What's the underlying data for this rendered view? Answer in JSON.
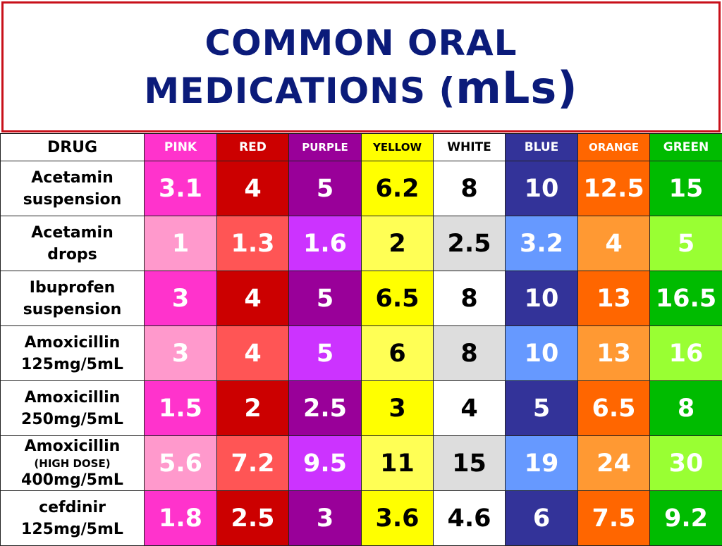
{
  "title": {
    "line1": "COMMON ORAL",
    "line2_main": "MEDICATIONS (",
    "line2_unit": "mLs)"
  },
  "table": {
    "drug_header": "DRUG",
    "columns": [
      {
        "label": "PINK",
        "header_bg": "#ff33cc",
        "header_fg": "#ffffff"
      },
      {
        "label": "RED",
        "header_bg": "#cc0000",
        "header_fg": "#ffffff"
      },
      {
        "label": "PURPLE",
        "header_bg": "#990099",
        "header_fg": "#ffffff"
      },
      {
        "label": "YELLOW",
        "header_bg": "#ffff00",
        "header_fg": "#000000"
      },
      {
        "label": "WHITE",
        "header_bg": "#ffffff",
        "header_fg": "#000000"
      },
      {
        "label": "BLUE",
        "header_bg": "#333399",
        "header_fg": "#ffffff"
      },
      {
        "label": "ORANGE",
        "header_bg": "#ff6600",
        "header_fg": "#ffffff"
      },
      {
        "label": "GREEN",
        "header_bg": "#00bb00",
        "header_fg": "#ffffff"
      }
    ],
    "row_styles": {
      "dark": {
        "bg": [
          "#ff33cc",
          "#cc0000",
          "#990099",
          "#ffff00",
          "#ffffff",
          "#333399",
          "#ff6600",
          "#00bb00"
        ],
        "fg": [
          "#ffffff",
          "#ffffff",
          "#ffffff",
          "#000000",
          "#000000",
          "#ffffff",
          "#ffffff",
          "#ffffff"
        ]
      },
      "light": {
        "bg": [
          "#ff99cc",
          "#ff5555",
          "#cc33ff",
          "#ffff55",
          "#dddddd",
          "#6699ff",
          "#ff9933",
          "#99ff33"
        ],
        "fg": [
          "#ffffff",
          "#ffffff",
          "#ffffff",
          "#000000",
          "#000000",
          "#ffffff",
          "#ffffff",
          "#ffffff"
        ]
      }
    },
    "rows": [
      {
        "drug": [
          "Acetamin",
          "suspension"
        ],
        "style": "dark",
        "values": [
          "3.1",
          "4",
          "5",
          "6.2",
          "8",
          "10",
          "12.5",
          "15"
        ]
      },
      {
        "drug": [
          "Acetamin",
          "drops"
        ],
        "style": "light",
        "values": [
          "1",
          "1.3",
          "1.6",
          "2",
          "2.5",
          "3.2",
          "4",
          "5"
        ]
      },
      {
        "drug": [
          "Ibuprofen",
          "suspension"
        ],
        "style": "dark",
        "values": [
          "3",
          "4",
          "5",
          "6.5",
          "8",
          "10",
          "13",
          "16.5"
        ]
      },
      {
        "drug": [
          "Amoxicillin",
          "125mg/5mL"
        ],
        "style": "light",
        "values": [
          "3",
          "4",
          "5",
          "6",
          "8",
          "10",
          "13",
          "16"
        ]
      },
      {
        "drug": [
          "Amoxicillin",
          "250mg/5mL"
        ],
        "style": "dark",
        "values": [
          "1.5",
          "2",
          "2.5",
          "3",
          "4",
          "5",
          "6.5",
          "8"
        ]
      },
      {
        "drug": [
          "Amoxicillin",
          "(HIGH DOSE)",
          "400mg/5mL"
        ],
        "style": "light",
        "values": [
          "5.6",
          "7.2",
          "9.5",
          "11",
          "15",
          "19",
          "24",
          "30"
        ]
      },
      {
        "drug": [
          "cefdinir",
          "125mg/5mL"
        ],
        "style": "dark",
        "values": [
          "1.8",
          "2.5",
          "3",
          "3.6",
          "4.6",
          "6",
          "7.5",
          "9.2"
        ]
      }
    ]
  }
}
